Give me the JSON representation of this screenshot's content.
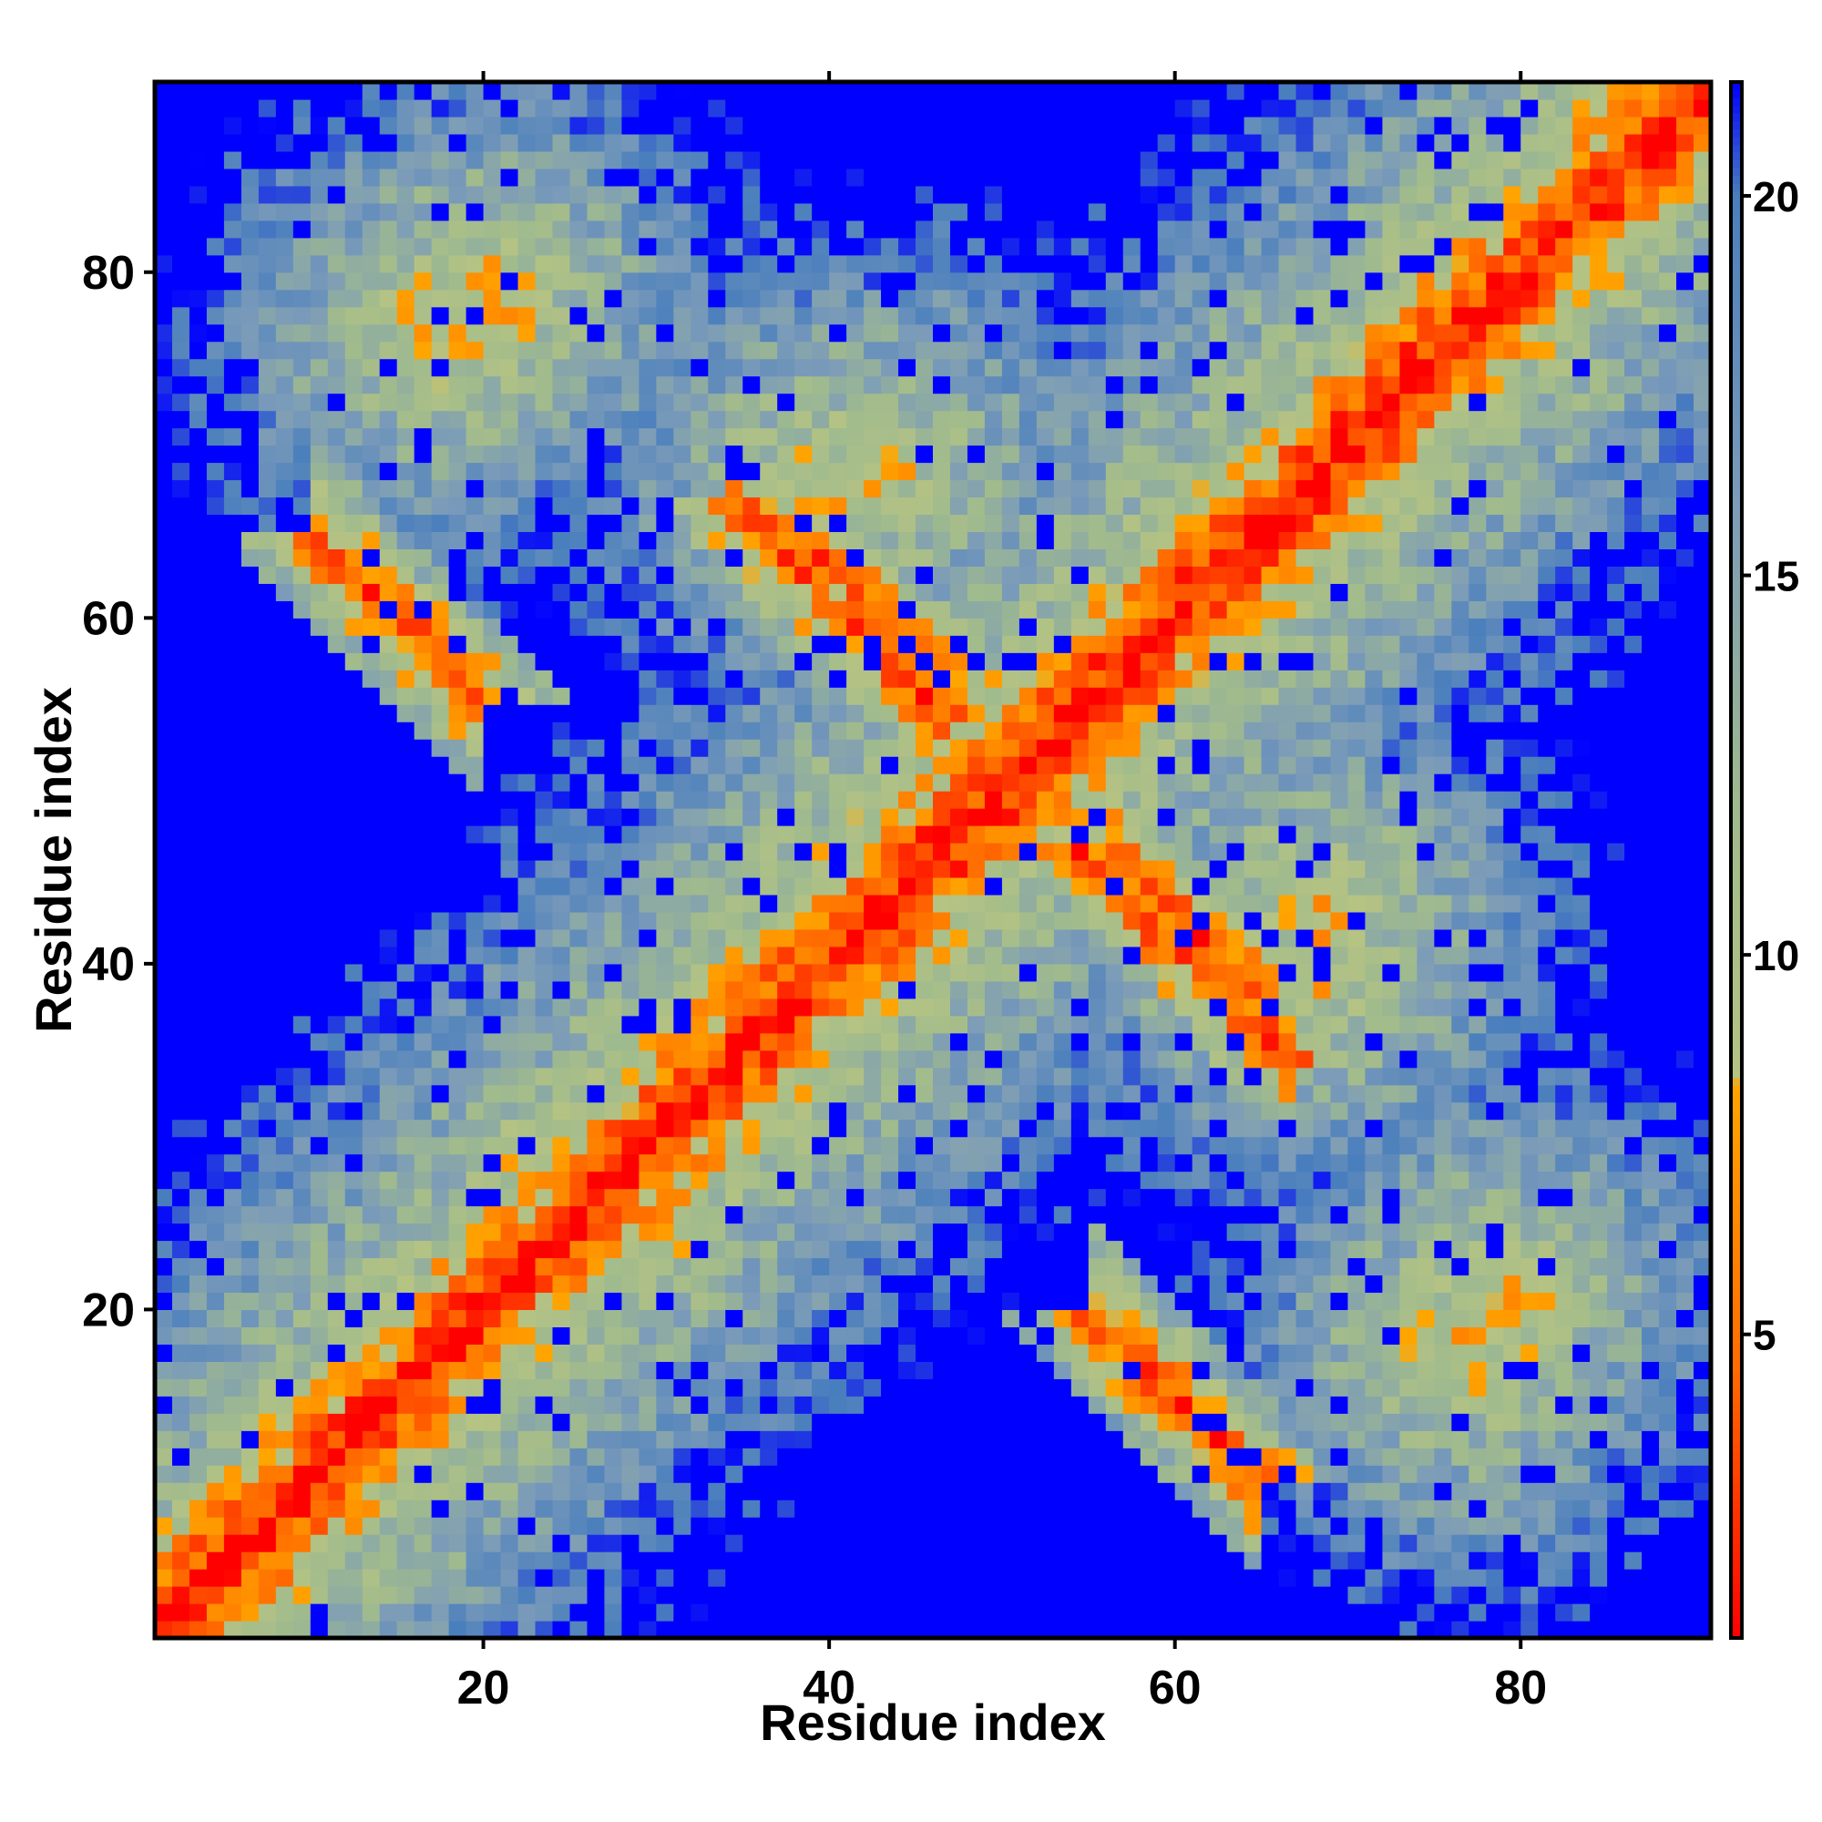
{
  "chart_data": {
    "type": "heatmap",
    "title": "",
    "xlabel": "Residue index",
    "ylabel": "Residue index",
    "xlim": [
      1,
      91
    ],
    "ylim": [
      1,
      91
    ],
    "n_residues": 90,
    "x_ticks": [
      20,
      40,
      60,
      80
    ],
    "y_ticks": [
      20,
      40,
      60,
      80
    ],
    "x_tick_labels": [
      "20",
      "40",
      "60",
      "80"
    ],
    "y_tick_labels": [
      "20",
      "40",
      "60",
      "80"
    ],
    "colorbar": {
      "range": [
        1,
        21.5
      ],
      "ticks": [
        5,
        10,
        15,
        20
      ],
      "tick_labels": [
        "5",
        "10",
        "15",
        "20"
      ],
      "stops": [
        {
          "value": 1,
          "color": "#ff0000"
        },
        {
          "value": 4.5,
          "color": "#ff6a00"
        },
        {
          "value": 8.3,
          "color": "#ffa500"
        },
        {
          "value": 8.4,
          "color": "#b5c383"
        },
        {
          "value": 12,
          "color": "#9fba8e"
        },
        {
          "value": 16,
          "color": "#7b9bb9"
        },
        {
          "value": 20,
          "color": "#4a7fbd"
        },
        {
          "value": 21.5,
          "color": "#0000ff"
        }
      ],
      "saturated_color": "#0000ff"
    },
    "description_fields": {
      "diagonal": "minimum distance along i=j",
      "features": [
        {
          "kind": "parallel_band",
          "offset": 0,
          "width": 9,
          "range": [
            1,
            90
          ]
        },
        {
          "kind": "antiparallel_strand",
          "along": "i+j=74",
          "i_range": [
            55,
            64
          ]
        },
        {
          "kind": "antiparallel_strand",
          "along": "i+j=100",
          "i_range": [
            54,
            66
          ]
        },
        {
          "kind": "antiparallel_strand",
          "along": "i+j=102",
          "i_range": [
            38,
            46
          ]
        },
        {
          "kind": "blob",
          "center": [
            42,
            68
          ]
        },
        {
          "kind": "blob",
          "center": [
            17,
            76
          ]
        },
        {
          "kind": "blob",
          "center": [
            67,
            39
          ]
        },
        {
          "kind": "blob",
          "center": [
            78,
            20
          ]
        },
        {
          "kind": "blob",
          "center": [
            24,
            28
          ]
        },
        {
          "kind": "blob",
          "center": [
            60,
            60
          ]
        }
      ]
    }
  }
}
